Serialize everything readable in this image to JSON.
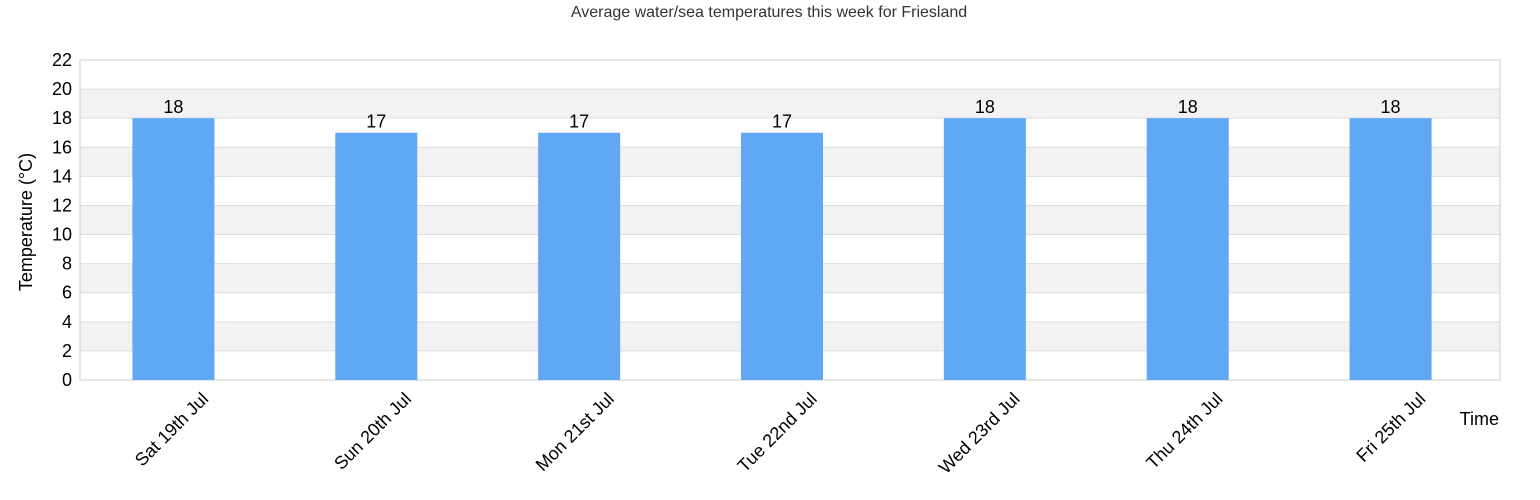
{
  "chart_data": {
    "type": "bar",
    "title": "Average water/sea temperatures this week for Friesland",
    "xlabel": "Time",
    "ylabel": "Temperature (°C)",
    "categories": [
      "Sat 19th Jul",
      "Sun 20th Jul",
      "Mon 21st Jul",
      "Tue 22nd Jul",
      "Wed 23rd Jul",
      "Thu 24th Jul",
      "Fri 25th Jul"
    ],
    "values": [
      18,
      17,
      17,
      17,
      18,
      18,
      18
    ],
    "ylim": [
      0,
      22
    ],
    "yticks": [
      0,
      2,
      4,
      6,
      8,
      10,
      12,
      14,
      16,
      18,
      20,
      22
    ],
    "grid": true,
    "legend": "none",
    "colors": {
      "bar": "#60a7f4",
      "band": "#f2f2f2",
      "gridline": "#dddddd",
      "axis": "#cccccc"
    }
  }
}
